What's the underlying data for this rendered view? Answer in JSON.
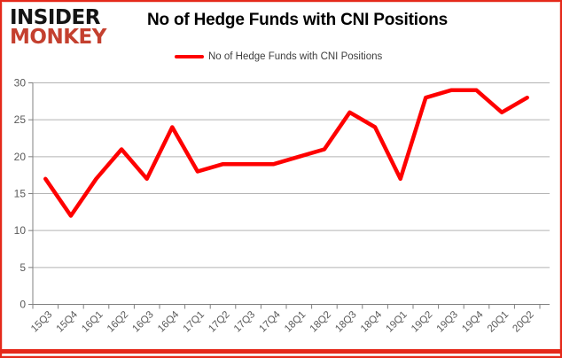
{
  "logo": {
    "line1": "INSIDER",
    "line2": "MONKEY"
  },
  "header": {
    "title": "No of Hedge Funds with CNI Positions"
  },
  "legend": {
    "label": "No of Hedge Funds with CNI Positions"
  },
  "colors": {
    "line": "#fe0000",
    "brand": "#c4402f",
    "frame": "#e5291a",
    "grid": "#b3b3b3",
    "axis": "#808080",
    "tick_label": "#595959",
    "title": "#000000",
    "legend_text": "#3d3d3d"
  },
  "chart_data": {
    "type": "line",
    "title": "No of Hedge Funds with CNI Positions",
    "categories": [
      "15Q3",
      "15Q4",
      "16Q1",
      "16Q2",
      "16Q3",
      "16Q4",
      "17Q1",
      "17Q2",
      "17Q3",
      "17Q4",
      "18Q1",
      "18Q2",
      "18Q3",
      "18Q4",
      "19Q1",
      "19Q2",
      "19Q3",
      "19Q4",
      "20Q1",
      "20Q2"
    ],
    "series": [
      {
        "name": "No of Hedge Funds with CNI Positions",
        "values": [
          17,
          12,
          17,
          21,
          17,
          24,
          18,
          19,
          19,
          19,
          20,
          21,
          26,
          24,
          17,
          28,
          29,
          29,
          26,
          28
        ]
      }
    ],
    "xlabel": "",
    "ylabel": "",
    "ylim": [
      0,
      30
    ],
    "ytick_step": 5,
    "grid": "horizontal",
    "legend_position": "top"
  }
}
